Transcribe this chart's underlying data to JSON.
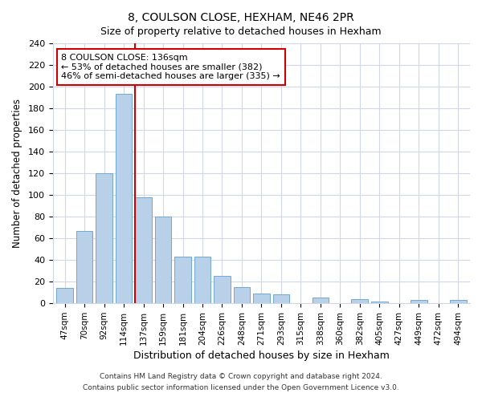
{
  "title": "8, COULSON CLOSE, HEXHAM, NE46 2PR",
  "subtitle": "Size of property relative to detached houses in Hexham",
  "xlabel": "Distribution of detached houses by size in Hexham",
  "ylabel": "Number of detached properties",
  "categories": [
    "47sqm",
    "70sqm",
    "92sqm",
    "114sqm",
    "137sqm",
    "159sqm",
    "181sqm",
    "204sqm",
    "226sqm",
    "248sqm",
    "271sqm",
    "293sqm",
    "315sqm",
    "338sqm",
    "360sqm",
    "382sqm",
    "405sqm",
    "427sqm",
    "449sqm",
    "472sqm",
    "494sqm"
  ],
  "values": [
    14,
    67,
    120,
    193,
    98,
    80,
    43,
    43,
    25,
    15,
    9,
    8,
    0,
    5,
    0,
    4,
    2,
    0,
    3,
    0,
    3
  ],
  "bar_color": "#b8d0e8",
  "bar_edge_color": "#6fa8d0",
  "highlight_line_color": "#cc0000",
  "annotation_text": "8 COULSON CLOSE: 136sqm\n← 53% of detached houses are smaller (382)\n46% of semi-detached houses are larger (335) →",
  "annotation_box_facecolor": "#ffffff",
  "annotation_box_edgecolor": "#cc0000",
  "ylim": [
    0,
    240
  ],
  "yticks": [
    0,
    20,
    40,
    60,
    80,
    100,
    120,
    140,
    160,
    180,
    200,
    220,
    240
  ],
  "footer_line1": "Contains HM Land Registry data © Crown copyright and database right 2024.",
  "footer_line2": "Contains public sector information licensed under the Open Government Licence v3.0.",
  "bg_color": "#ffffff",
  "plot_bg_color": "#ffffff",
  "grid_color": "#d0d8e8"
}
